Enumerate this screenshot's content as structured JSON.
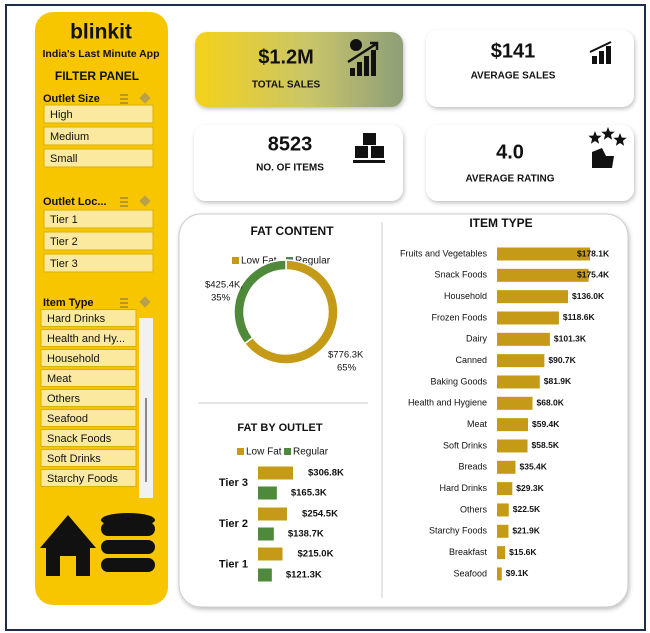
{
  "brand": {
    "name": "blinkit",
    "tagline": "India's Last Minute App"
  },
  "filter_panel": {
    "title": "FILTER PANEL",
    "groups": [
      {
        "label": "Outlet Size",
        "items": [
          "High",
          "Medium",
          "Small"
        ]
      },
      {
        "label": "Outlet Loc...",
        "items": [
          "Tier 1",
          "Tier 2",
          "Tier 3"
        ]
      },
      {
        "label": "Item Type",
        "items": [
          "Hard Drinks",
          "Health and Hy...",
          "Household",
          "Meat",
          "Others",
          "Seafood",
          "Snack Foods",
          "Soft Drinks",
          "Starchy Foods"
        ]
      }
    ]
  },
  "kpis": [
    {
      "value": "$1.2M",
      "label": "TOTAL SALES"
    },
    {
      "value": "$141",
      "label": "AVERAGE SALES"
    },
    {
      "value": "8523",
      "label": "NO. OF ITEMS"
    },
    {
      "value": "4.0",
      "label": "AVERAGE RATING"
    }
  ],
  "chart_data": [
    {
      "type": "pie",
      "donut": true,
      "title": "FAT CONTENT",
      "categories": [
        "Low Fat",
        "Regular"
      ],
      "values": [
        776300,
        425400
      ],
      "value_labels": [
        "$776.3K",
        "$425.4K,"
      ],
      "percent_labels": [
        "65%",
        "35%"
      ],
      "colors": [
        "#c49a16",
        "#4e8a3a"
      ]
    },
    {
      "type": "bar",
      "orientation": "horizontal",
      "title": "FAT BY OUTLET",
      "categories": [
        "Tier 3",
        "Tier 2",
        "Tier 1"
      ],
      "series": [
        {
          "name": "Low Fat",
          "color": "#c49a16",
          "values": [
            306800,
            254500,
            215000
          ],
          "value_labels": [
            "$306.8K",
            "$254.5K",
            "$215.0K"
          ]
        },
        {
          "name": "Regular",
          "color": "#4e8a3a",
          "values": [
            165300,
            138700,
            121300
          ],
          "value_labels": [
            "$165.3K",
            "$138.7K",
            "$121.3K"
          ]
        }
      ]
    },
    {
      "type": "bar",
      "orientation": "horizontal",
      "title": "ITEM TYPE",
      "color": "#c49a16",
      "categories": [
        "Fruits and Vegetables",
        "Snack Foods",
        "Household",
        "Frozen Foods",
        "Dairy",
        "Canned",
        "Baking Goods",
        "Health and Hygiene",
        "Meat",
        "Soft Drinks",
        "Breads",
        "Hard Drinks",
        "Others",
        "Starchy Foods",
        "Breakfast",
        "Seafood"
      ],
      "values": [
        178100,
        175400,
        136000,
        118600,
        101300,
        90700,
        81900,
        68000,
        59400,
        58500,
        35400,
        29300,
        22500,
        21900,
        15600,
        9100
      ],
      "value_labels": [
        "$178.1K",
        "$175.4K",
        "$136.0K",
        "$118.6K",
        "$101.3K",
        "$90.7K",
        "$81.9K",
        "$68.0K",
        "$59.4K",
        "$58.5K",
        "$35.4K",
        "$29.3K",
        "$22.5K",
        "$21.9K",
        "$15.6K",
        "$9.1K"
      ]
    }
  ]
}
